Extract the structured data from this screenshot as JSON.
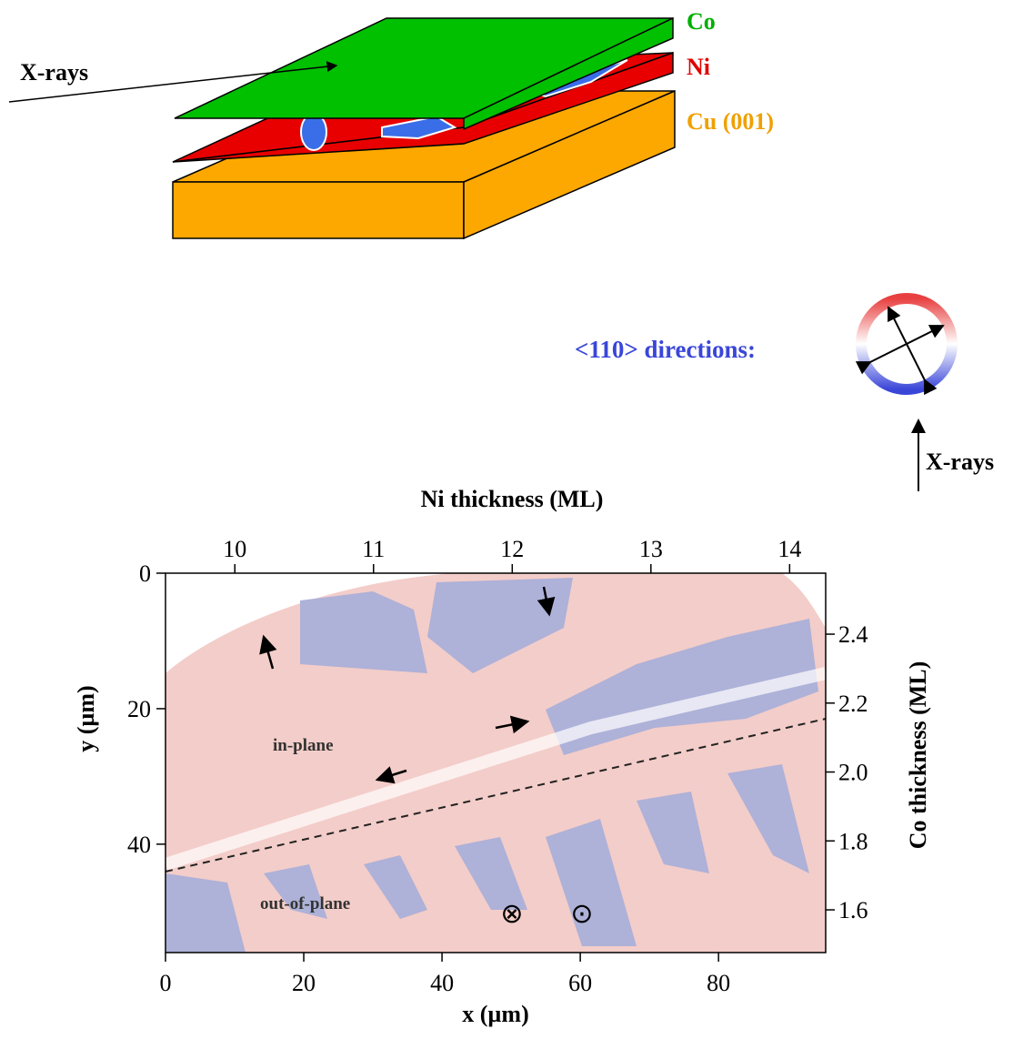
{
  "schematic": {
    "layers": [
      "Co",
      "Ni",
      "Cu (001)"
    ],
    "beam_label": "X-rays"
  },
  "directions": {
    "label": "<110> directions:",
    "beam_label": "X-rays"
  },
  "plot": {
    "annotations": [
      "in-plane",
      "out-of-plane"
    ],
    "symbols": [
      "⊗",
      "⊙"
    ],
    "x_axis": {
      "title": "x  (µm)",
      "lim": [
        0,
        95.5
      ],
      "ticks": [
        0,
        20,
        40,
        60,
        80
      ]
    },
    "y_axis": {
      "title": "y  (µm)",
      "lim": [
        0,
        56
      ],
      "ticks": [
        0,
        20,
        40
      ]
    },
    "top_axis": {
      "title": "Ni thickness  (ML)",
      "lim": [
        9.5,
        14.26
      ],
      "ticks": [
        10,
        11,
        12,
        13,
        14
      ]
    },
    "right_axis": {
      "title": "Co thickness  (ML)",
      "lim": [
        1.476,
        2.577
      ],
      "ticks": [
        2.4,
        2.2,
        {
          "value": 2.0,
          "label": "2.0"
        },
        1.8,
        1.6
      ]
    }
  }
}
